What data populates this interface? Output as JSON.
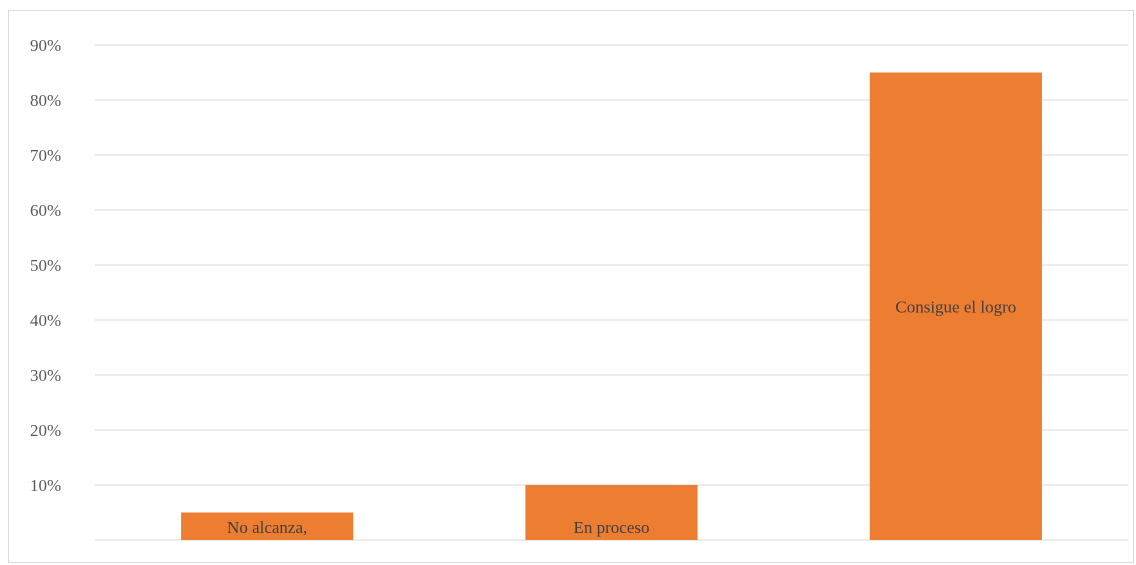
{
  "chart_data": {
    "type": "bar",
    "categories": [
      "No alcanza,",
      "En proceso",
      "Consigue el logro"
    ],
    "values": [
      5,
      10,
      85
    ],
    "data_labels": [
      "No alcanza,",
      "En proceso",
      "Consigue el logro"
    ],
    "y_ticks": [
      "10%",
      "20%",
      "30%",
      "40%",
      "50%",
      "60%",
      "70%",
      "80%",
      "90%"
    ],
    "ylim": [
      0,
      90
    ],
    "grid": true,
    "legend": "none",
    "colors": {
      "bar": "#ed7d31",
      "grid": "#d9d9d9",
      "text": "#595959"
    }
  }
}
